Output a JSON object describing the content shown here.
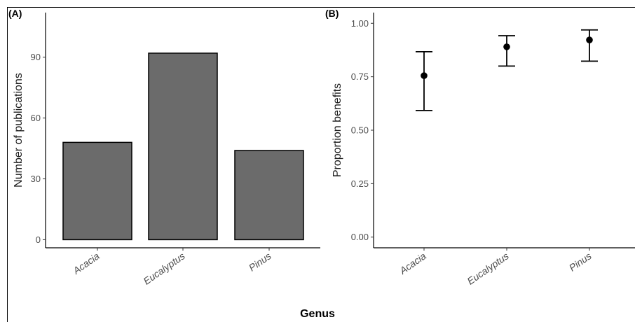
{
  "panels": {
    "a_tag": "(A)",
    "b_tag": "(B)"
  },
  "shared_xlabel": "Genus",
  "chart_data": [
    {
      "type": "bar",
      "panel": "(A)",
      "categories": [
        "Acacia",
        "Eucalyptus",
        "Pinus"
      ],
      "values": [
        48,
        92,
        44
      ],
      "ylabel": "Number of publications",
      "xlabel": "",
      "yticks": [
        0,
        30,
        60,
        90
      ],
      "ylim": [
        -4,
        112
      ],
      "bar_color": "#6b6b6b",
      "grid": false
    },
    {
      "type": "scatter",
      "panel": "(B)",
      "categories": [
        "Acacia",
        "Eucalyptus",
        "Pinus"
      ],
      "values": [
        0.755,
        0.89,
        0.922
      ],
      "error_low": [
        0.592,
        0.8,
        0.823
      ],
      "error_high": [
        0.867,
        0.942,
        0.969
      ],
      "ylabel": "Proportion benefits",
      "xlabel": "",
      "yticks": [
        0.0,
        0.25,
        0.5,
        0.75,
        1.0
      ],
      "ytick_labels": [
        "0.00",
        "0.25",
        "0.50",
        "0.75",
        "1.00"
      ],
      "ylim": [
        -0.05,
        1.05
      ],
      "point_color": "#000000",
      "grid": false
    }
  ]
}
